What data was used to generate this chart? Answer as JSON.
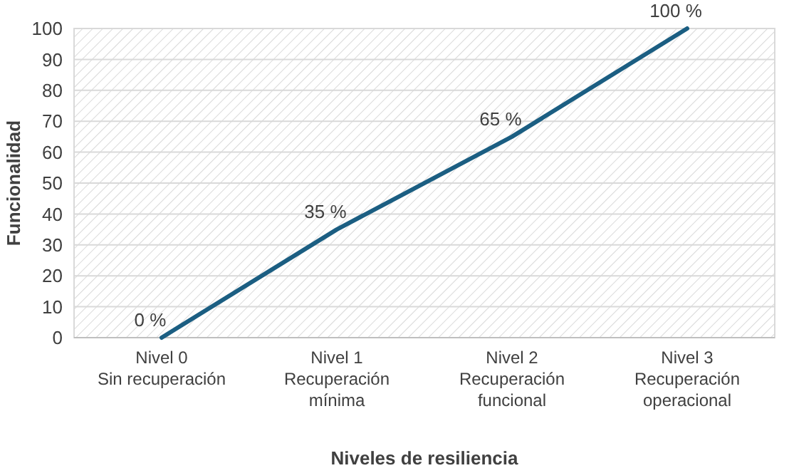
{
  "chart_data": {
    "type": "line",
    "xlabel": "Niveles de resiliencia",
    "ylabel": "Funcionalidad",
    "categories": [
      "Nivel 0\nSin recuperación",
      "Nivel 1\nRecuperación\nmínima",
      "Nivel 2\nRecuperación\nfuncional",
      "Nivel 3\nRecuperación\noperacional"
    ],
    "values": [
      0,
      35,
      65,
      100
    ],
    "color": "#1b5e82",
    "value_labels": [
      "0 %",
      "35 %",
      "65 %",
      "100 %"
    ],
    "ylim": [
      0,
      100
    ],
    "yticks": [
      0,
      10,
      20,
      30,
      40,
      50,
      60,
      70,
      80,
      90,
      100
    ],
    "grid": "y",
    "marker": "none",
    "line_style": "solid"
  }
}
